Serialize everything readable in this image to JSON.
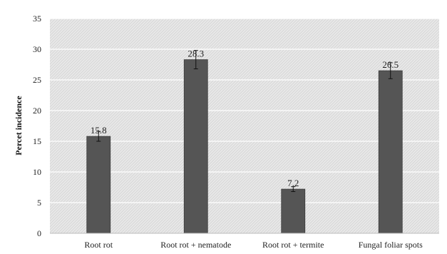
{
  "chart_data": {
    "type": "bar",
    "ylabel": "Percet incidence",
    "xlabel": "",
    "ylim": [
      0,
      35
    ],
    "yticks": [
      0,
      5,
      10,
      15,
      20,
      25,
      30,
      35
    ],
    "grid": true,
    "categories": [
      "Root rot",
      "Root rot + nematode",
      "Root rot + termite",
      "Fungal foliar spots"
    ],
    "values": [
      15.8,
      28.3,
      7.2,
      26.5
    ],
    "errors": [
      0.8,
      1.5,
      0.4,
      1.3
    ],
    "data_labels": [
      "15.8",
      "28.3",
      "7.2",
      "26.5"
    ],
    "bar_color": "#555555",
    "background_color": "#e6e6e6"
  }
}
